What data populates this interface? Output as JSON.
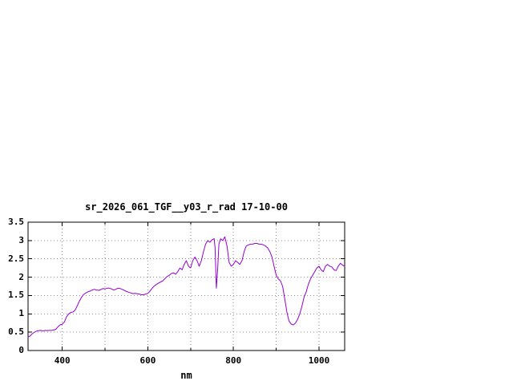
{
  "window": {
    "background": "#ffffff"
  },
  "chart_data": {
    "type": "line",
    "title": "sr_2026_061_TGF__y03_r_rad 17-10-00",
    "xlabel": "nm",
    "ylabel": "",
    "xlim": [
      320,
      1060
    ],
    "ylim": [
      0,
      3.5
    ],
    "xticks": [
      400,
      600,
      800,
      1000
    ],
    "xgrid": [
      400,
      500,
      600,
      700,
      800,
      900,
      1000
    ],
    "yticks": [
      0,
      0.5,
      1,
      1.5,
      2,
      2.5,
      3,
      3.5
    ],
    "ygrid": [
      0.5,
      1,
      1.5,
      2,
      2.5,
      3,
      3.5
    ],
    "grid": true,
    "legend": "none",
    "line_color": "#9400d3",
    "grid_color": "#909090",
    "axis_color": "#000000",
    "series": [
      {
        "name": "sr_2026_061_TGF__y03_r_rad",
        "points": [
          [
            320,
            0.36
          ],
          [
            325,
            0.4
          ],
          [
            330,
            0.46
          ],
          [
            335,
            0.5
          ],
          [
            340,
            0.53
          ],
          [
            345,
            0.54
          ],
          [
            350,
            0.55
          ],
          [
            355,
            0.53
          ],
          [
            360,
            0.55
          ],
          [
            365,
            0.54
          ],
          [
            370,
            0.55
          ],
          [
            375,
            0.55
          ],
          [
            380,
            0.56
          ],
          [
            385,
            0.58
          ],
          [
            390,
            0.65
          ],
          [
            395,
            0.7
          ],
          [
            400,
            0.72
          ],
          [
            405,
            0.78
          ],
          [
            410,
            0.92
          ],
          [
            415,
            1.0
          ],
          [
            420,
            1.04
          ],
          [
            425,
            1.05
          ],
          [
            430,
            1.1
          ],
          [
            435,
            1.22
          ],
          [
            440,
            1.35
          ],
          [
            445,
            1.45
          ],
          [
            450,
            1.53
          ],
          [
            455,
            1.57
          ],
          [
            460,
            1.6
          ],
          [
            465,
            1.62
          ],
          [
            470,
            1.65
          ],
          [
            475,
            1.67
          ],
          [
            480,
            1.65
          ],
          [
            485,
            1.64
          ],
          [
            490,
            1.66
          ],
          [
            495,
            1.69
          ],
          [
            500,
            1.68
          ],
          [
            505,
            1.7
          ],
          [
            510,
            1.7
          ],
          [
            515,
            1.68
          ],
          [
            520,
            1.65
          ],
          [
            525,
            1.67
          ],
          [
            530,
            1.7
          ],
          [
            535,
            1.69
          ],
          [
            540,
            1.67
          ],
          [
            545,
            1.64
          ],
          [
            550,
            1.61
          ],
          [
            555,
            1.59
          ],
          [
            560,
            1.57
          ],
          [
            565,
            1.55
          ],
          [
            570,
            1.56
          ],
          [
            575,
            1.55
          ],
          [
            580,
            1.54
          ],
          [
            585,
            1.52
          ],
          [
            590,
            1.52
          ],
          [
            595,
            1.54
          ],
          [
            600,
            1.56
          ],
          [
            605,
            1.62
          ],
          [
            610,
            1.7
          ],
          [
            615,
            1.76
          ],
          [
            620,
            1.8
          ],
          [
            625,
            1.84
          ],
          [
            630,
            1.87
          ],
          [
            635,
            1.9
          ],
          [
            640,
            1.96
          ],
          [
            645,
            2.02
          ],
          [
            650,
            2.05
          ],
          [
            655,
            2.1
          ],
          [
            660,
            2.12
          ],
          [
            665,
            2.08
          ],
          [
            670,
            2.15
          ],
          [
            675,
            2.25
          ],
          [
            680,
            2.2
          ],
          [
            685,
            2.35
          ],
          [
            690,
            2.45
          ],
          [
            695,
            2.3
          ],
          [
            700,
            2.25
          ],
          [
            705,
            2.45
          ],
          [
            710,
            2.55
          ],
          [
            715,
            2.45
          ],
          [
            720,
            2.3
          ],
          [
            725,
            2.45
          ],
          [
            730,
            2.7
          ],
          [
            735,
            2.9
          ],
          [
            740,
            3.0
          ],
          [
            745,
            2.95
          ],
          [
            750,
            3.02
          ],
          [
            755,
            3.05
          ],
          [
            757,
            2.8
          ],
          [
            760,
            1.7
          ],
          [
            763,
            2.2
          ],
          [
            766,
            2.9
          ],
          [
            770,
            3.05
          ],
          [
            775,
            3.0
          ],
          [
            780,
            3.1
          ],
          [
            785,
            2.85
          ],
          [
            790,
            2.4
          ],
          [
            795,
            2.3
          ],
          [
            800,
            2.35
          ],
          [
            805,
            2.45
          ],
          [
            810,
            2.4
          ],
          [
            815,
            2.35
          ],
          [
            820,
            2.45
          ],
          [
            825,
            2.7
          ],
          [
            830,
            2.85
          ],
          [
            835,
            2.88
          ],
          [
            840,
            2.9
          ],
          [
            845,
            2.9
          ],
          [
            850,
            2.92
          ],
          [
            855,
            2.92
          ],
          [
            860,
            2.9
          ],
          [
            865,
            2.9
          ],
          [
            870,
            2.88
          ],
          [
            875,
            2.85
          ],
          [
            880,
            2.8
          ],
          [
            885,
            2.7
          ],
          [
            890,
            2.55
          ],
          [
            895,
            2.3
          ],
          [
            900,
            2.05
          ],
          [
            905,
            1.95
          ],
          [
            910,
            1.9
          ],
          [
            915,
            1.75
          ],
          [
            920,
            1.4
          ],
          [
            925,
            1.05
          ],
          [
            930,
            0.8
          ],
          [
            935,
            0.72
          ],
          [
            940,
            0.7
          ],
          [
            945,
            0.75
          ],
          [
            950,
            0.85
          ],
          [
            955,
            1.0
          ],
          [
            960,
            1.2
          ],
          [
            965,
            1.45
          ],
          [
            970,
            1.6
          ],
          [
            975,
            1.8
          ],
          [
            980,
            1.95
          ],
          [
            985,
            2.05
          ],
          [
            990,
            2.15
          ],
          [
            995,
            2.25
          ],
          [
            1000,
            2.3
          ],
          [
            1005,
            2.2
          ],
          [
            1010,
            2.15
          ],
          [
            1015,
            2.3
          ],
          [
            1020,
            2.35
          ],
          [
            1025,
            2.3
          ],
          [
            1030,
            2.28
          ],
          [
            1035,
            2.2
          ],
          [
            1040,
            2.18
          ],
          [
            1045,
            2.3
          ],
          [
            1050,
            2.38
          ],
          [
            1055,
            2.33
          ],
          [
            1060,
            2.3
          ]
        ]
      }
    ]
  }
}
